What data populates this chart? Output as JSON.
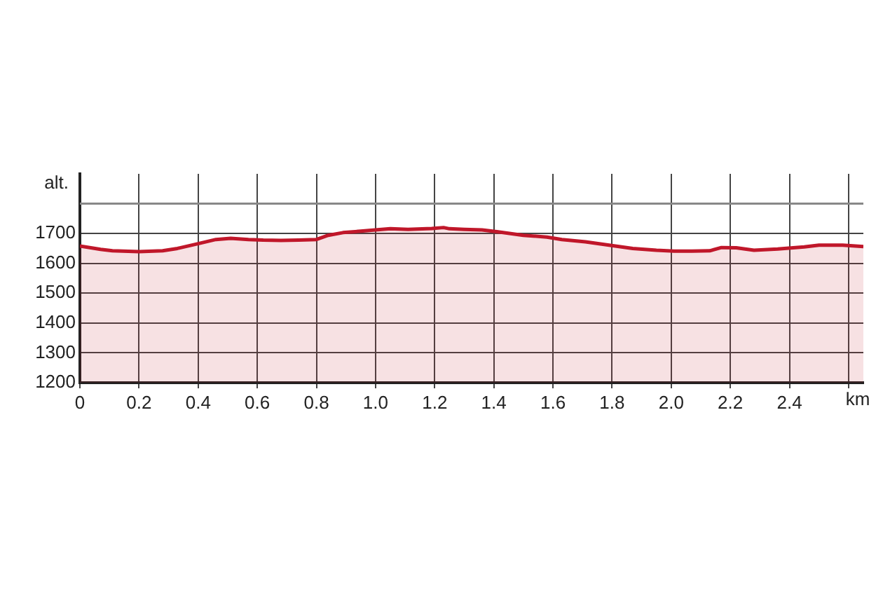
{
  "chart_data": {
    "type": "area",
    "xlabel": "km",
    "ylabel": "alt.",
    "xlim": [
      0,
      2.65
    ],
    "ylim": [
      1200,
      1900
    ],
    "xticks": [
      0,
      0.2,
      0.4,
      0.6,
      0.8,
      {
        "value": 1,
        "label": "1.0"
      },
      1.2,
      1.4,
      1.6,
      1.8,
      {
        "value": 2,
        "label": "2.0"
      },
      2.2,
      2.4,
      {
        "value": 2.6,
        "label": null
      }
    ],
    "yticks": [
      1200,
      1300,
      1400,
      1500,
      1600,
      1700
    ],
    "ref_lines": [
      {
        "axis": "y",
        "value": 1800,
        "color": "#888888"
      }
    ],
    "grid": true,
    "legend": false,
    "series": [
      {
        "color": "#c0172a",
        "x": [
          0,
          0.07,
          0.11,
          0.2,
          0.28,
          0.33,
          0.4,
          0.46,
          0.51,
          0.57,
          0.62,
          0.68,
          0.74,
          0.8,
          0.84,
          0.89,
          0.95,
          1.0,
          1.05,
          1.11,
          1.19,
          1.23,
          1.25,
          1.3,
          1.36,
          1.41,
          1.5,
          1.58,
          1.63,
          1.71,
          1.79,
          1.87,
          1.95,
          2.01,
          2.07,
          2.13,
          2.17,
          2.22,
          2.28,
          2.36,
          2.45,
          2.5,
          2.58,
          2.65
        ],
        "values": [
          1658,
          1647,
          1642,
          1639,
          1642,
          1650,
          1666,
          1680,
          1684,
          1680,
          1678,
          1677,
          1678,
          1680,
          1694,
          1703,
          1708,
          1712,
          1716,
          1714,
          1717,
          1720,
          1716,
          1714,
          1712,
          1706,
          1694,
          1688,
          1680,
          1672,
          1661,
          1650,
          1644,
          1641,
          1641,
          1642,
          1653,
          1652,
          1644,
          1648,
          1655,
          1661,
          1661,
          1656
        ]
      }
    ]
  }
}
